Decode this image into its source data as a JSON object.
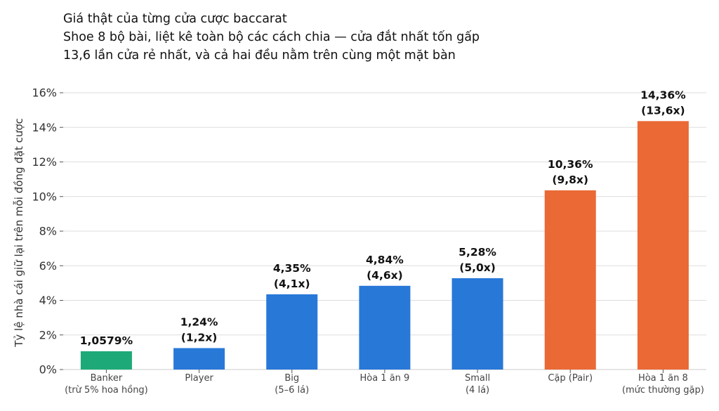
{
  "chart_data": {
    "type": "bar",
    "title": "Giá thật của từng cửa cược baccarat",
    "subtitle_lines": [
      "Shoe 8 bộ bài, liệt kê toàn bộ các cách chia — cửa đắt nhất tốn gấp",
      "13,6 lần cửa rẻ nhất, và cả hai đều nằm trên cùng một mặt bàn"
    ],
    "ylabel": "Tỷ lệ nhà cái giữ lại trên mỗi đồng đặt cược",
    "ylim": [
      0,
      16
    ],
    "yticks": [
      "0%",
      "2%",
      "4%",
      "6%",
      "8%",
      "10%",
      "12%",
      "14%",
      "16%"
    ],
    "grid": true,
    "categories": [
      [
        "Banker",
        "(trừ 5% hoa hồng)"
      ],
      [
        "Player"
      ],
      [
        "Big",
        "(5–6 lá)"
      ],
      [
        "Hòa 1 ăn 9"
      ],
      [
        "Small",
        "(4 lá)"
      ],
      [
        "Cặp (Pair)"
      ],
      [
        "Hòa 1 ăn 8",
        "(mức thường gặp)"
      ]
    ],
    "values": [
      1.0579,
      1.24,
      4.35,
      4.84,
      5.28,
      10.36,
      14.36
    ],
    "value_labels": [
      [
        "1,0579%"
      ],
      [
        "1,24%",
        "(1,2x)"
      ],
      [
        "4,35%",
        "(4,1x)"
      ],
      [
        "4,84%",
        "(4,6x)"
      ],
      [
        "5,28%",
        "(5,0x)"
      ],
      [
        "10,36%",
        "(9,8x)"
      ],
      [
        "14,36%",
        "(13,6x)"
      ]
    ],
    "colors": [
      "#1daa78",
      "#2878d8",
      "#2878d8",
      "#2878d8",
      "#2878d8",
      "#ea6935",
      "#ea6935"
    ]
  }
}
